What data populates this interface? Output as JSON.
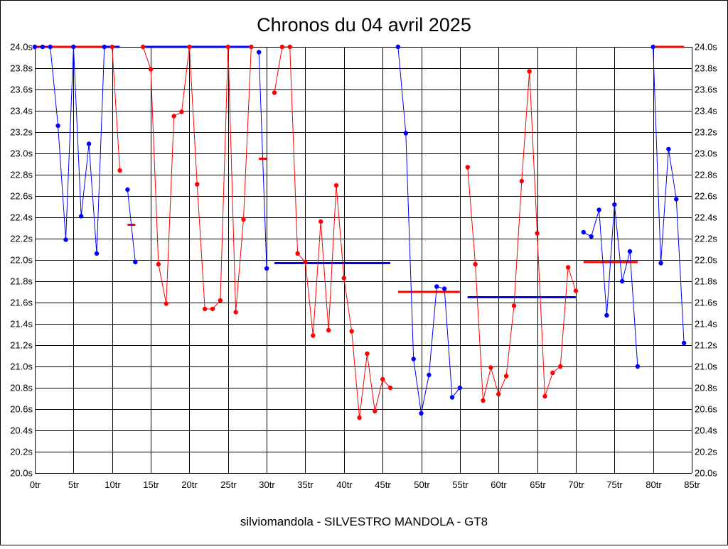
{
  "chart_data": {
    "type": "line",
    "title": "Chronos du 04 avril 2025",
    "subtitle": "silviomandola - SILVESTRO MANDOLA - GT8",
    "xlim": [
      0,
      85
    ],
    "ylim": [
      20.0,
      24.0
    ],
    "x_ticks": [
      0,
      5,
      10,
      15,
      20,
      25,
      30,
      35,
      40,
      45,
      50,
      55,
      60,
      65,
      70,
      75,
      80,
      85
    ],
    "x_tick_labels": [
      "0tr",
      "5tr",
      "10tr",
      "15tr",
      "20tr",
      "25tr",
      "30tr",
      "35tr",
      "40tr",
      "45tr",
      "50tr",
      "55tr",
      "60tr",
      "65tr",
      "70tr",
      "75tr",
      "80tr",
      "85tr"
    ],
    "y_ticks": [
      20.0,
      20.2,
      20.4,
      20.6,
      20.8,
      21.0,
      21.2,
      21.4,
      21.6,
      21.8,
      22.0,
      22.2,
      22.4,
      22.6,
      22.8,
      23.0,
      23.2,
      23.4,
      23.6,
      23.8,
      24.0
    ],
    "y_tick_labels": [
      "20.0s",
      "20.2s",
      "20.4s",
      "20.6s",
      "20.8s",
      "21.0s",
      "21.2s",
      "21.4s",
      "21.6s",
      "21.8s",
      "22.0s",
      "22.2s",
      "22.4s",
      "22.6s",
      "22.8s",
      "23.0s",
      "23.2s",
      "23.4s",
      "23.6s",
      "23.8s",
      "24.0s"
    ],
    "grid": true,
    "series": [
      {
        "color": "#0000ff",
        "segments": [
          [
            [
              0,
              24.0
            ],
            [
              1,
              24.0
            ],
            [
              2,
              24.0
            ],
            [
              3,
              23.26
            ],
            [
              4,
              22.19
            ],
            [
              5,
              24.0
            ],
            [
              6,
              22.41
            ],
            [
              7,
              23.09
            ],
            [
              8,
              22.06
            ],
            [
              9,
              24.0
            ]
          ],
          [
            [
              12,
              22.66
            ],
            [
              13,
              21.98
            ]
          ],
          [
            [
              29,
              23.95
            ],
            [
              30,
              21.92
            ]
          ],
          [
            [
              47,
              24.0
            ],
            [
              48,
              23.19
            ],
            [
              49,
              21.07
            ],
            [
              50,
              20.56
            ],
            [
              51,
              20.92
            ],
            [
              52,
              21.75
            ],
            [
              53,
              21.73
            ],
            [
              54,
              20.71
            ],
            [
              55,
              20.8
            ]
          ],
          [
            [
              71,
              22.26
            ],
            [
              72,
              22.22
            ],
            [
              73,
              22.47
            ],
            [
              74,
              21.48
            ],
            [
              75,
              22.52
            ],
            [
              76,
              21.8
            ],
            [
              77,
              22.08
            ],
            [
              78,
              21.0
            ]
          ],
          [
            [
              80,
              24.0
            ],
            [
              81,
              21.97
            ],
            [
              82,
              23.04
            ],
            [
              83,
              22.57
            ],
            [
              84,
              21.22
            ]
          ]
        ]
      },
      {
        "color": "#ff0000",
        "segments": [
          [
            [
              10,
              24.0
            ],
            [
              11,
              22.84
            ]
          ],
          [
            [
              14,
              24.0
            ],
            [
              15,
              23.79
            ],
            [
              16,
              21.96
            ],
            [
              17,
              21.59
            ],
            [
              18,
              23.35
            ],
            [
              19,
              23.39
            ],
            [
              20,
              24.0
            ],
            [
              21,
              22.71
            ],
            [
              22,
              21.54
            ],
            [
              23,
              21.54
            ],
            [
              24,
              21.62
            ],
            [
              25,
              24.0
            ],
            [
              26,
              21.51
            ],
            [
              27,
              22.38
            ],
            [
              28,
              24.0
            ]
          ],
          [
            [
              31,
              23.57
            ],
            [
              32,
              24.0
            ],
            [
              33,
              24.0
            ],
            [
              34,
              22.06
            ],
            [
              35,
              21.98
            ],
            [
              36,
              21.29
            ],
            [
              37,
              22.36
            ],
            [
              38,
              21.34
            ],
            [
              39,
              22.7
            ],
            [
              40,
              21.83
            ],
            [
              41,
              21.33
            ],
            [
              42,
              20.52
            ],
            [
              43,
              21.12
            ],
            [
              44,
              20.58
            ],
            [
              45,
              20.88
            ],
            [
              46,
              20.8
            ]
          ],
          [
            [
              56,
              22.87
            ],
            [
              57,
              21.96
            ],
            [
              58,
              20.68
            ],
            [
              59,
              20.99
            ],
            [
              60,
              20.74
            ],
            [
              61,
              20.91
            ],
            [
              62,
              21.57
            ],
            [
              63,
              22.74
            ],
            [
              64,
              23.77
            ],
            [
              65,
              22.25
            ],
            [
              66,
              20.72
            ],
            [
              67,
              20.94
            ],
            [
              68,
              21.0
            ],
            [
              69,
              21.93
            ],
            [
              70,
              21.71
            ]
          ]
        ]
      }
    ],
    "reference_lines": [
      {
        "color": "#ff0000",
        "x": [
          0,
          9
        ],
        "y": 24.0
      },
      {
        "color": "#0000ff",
        "x": [
          9,
          11
        ],
        "y": 24.0
      },
      {
        "color": "#ff0000",
        "x": [
          12,
          13
        ],
        "y": 22.33
      },
      {
        "color": "#0000ff",
        "x": [
          14,
          28
        ],
        "y": 24.0
      },
      {
        "color": "#ff0000",
        "x": [
          29,
          30
        ],
        "y": 22.95
      },
      {
        "color": "#0000ff",
        "x": [
          31,
          46
        ],
        "y": 21.97
      },
      {
        "color": "#ff0000",
        "x": [
          47,
          55
        ],
        "y": 21.7
      },
      {
        "color": "#0000ff",
        "x": [
          56,
          70
        ],
        "y": 21.65
      },
      {
        "color": "#ff0000",
        "x": [
          71,
          78
        ],
        "y": 21.98
      },
      {
        "color": "#ff0000",
        "x": [
          80,
          84
        ],
        "y": 24.0
      }
    ]
  }
}
